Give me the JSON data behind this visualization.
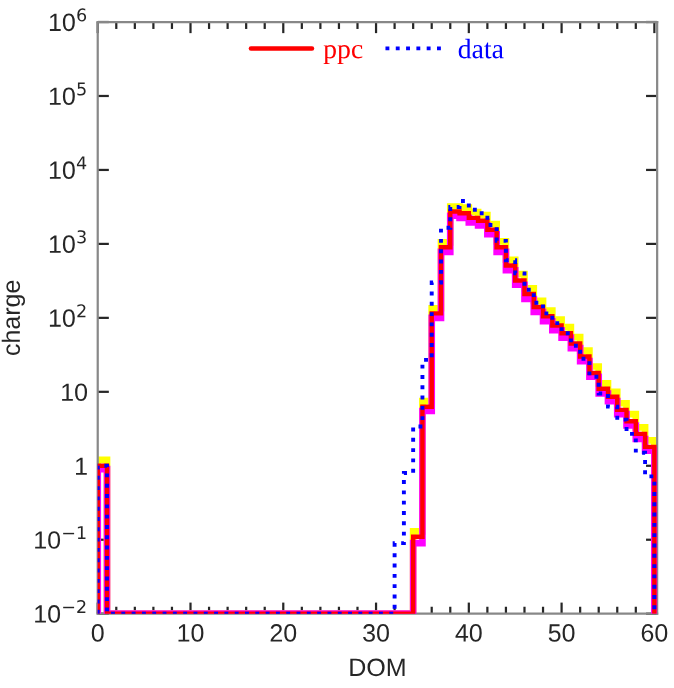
{
  "chart_data": {
    "type": "histogram",
    "xlabel": "DOM",
    "ylabel": "charge",
    "log": "y",
    "bins": [
      0,
      1,
      2,
      3,
      4,
      5,
      6,
      7,
      8,
      9,
      10,
      11,
      12,
      13,
      14,
      15,
      16,
      17,
      18,
      19,
      20,
      21,
      22,
      23,
      24,
      25,
      26,
      27,
      28,
      29,
      30,
      31,
      32,
      33,
      34,
      35,
      36,
      37,
      38,
      39,
      40,
      41,
      42,
      43,
      44,
      45,
      46,
      47,
      48,
      49,
      50,
      51,
      52,
      53,
      54,
      55,
      56,
      57,
      58,
      59,
      60
    ],
    "series": [
      {
        "color": "#ffff00",
        "line_style": "solid",
        "values": [
          1.2,
          null,
          null,
          null,
          null,
          null,
          null,
          null,
          null,
          null,
          null,
          null,
          null,
          null,
          null,
          null,
          null,
          null,
          null,
          null,
          null,
          null,
          null,
          null,
          null,
          null,
          null,
          null,
          null,
          null,
          null,
          null,
          null,
          null,
          0.13,
          7.5,
          135,
          1050,
          3200,
          3100,
          2700,
          2450,
          1850,
          1080,
          610,
          390,
          250,
          170,
          125,
          95,
          75,
          55,
          36,
          22,
          13,
          10,
          7,
          5,
          3.3,
          2.2
        ]
      },
      {
        "color": "#ff00ff",
        "line_style": "solid",
        "values": [
          0.9,
          null,
          null,
          null,
          null,
          null,
          null,
          null,
          null,
          null,
          null,
          null,
          null,
          null,
          null,
          null,
          null,
          null,
          null,
          null,
          null,
          null,
          null,
          null,
          null,
          null,
          null,
          null,
          null,
          null,
          null,
          null,
          null,
          null,
          0.09,
          5.5,
          100,
          780,
          2400,
          2250,
          1950,
          1780,
          1350,
          780,
          440,
          280,
          180,
          120,
          90,
          68,
          54,
          39,
          26,
          16,
          9.5,
          7.5,
          5,
          3.5,
          2.3,
          1.6
        ]
      },
      {
        "name": "ppc",
        "color": "#ff0000",
        "line_style": "solid",
        "values": [
          1,
          null,
          null,
          null,
          null,
          null,
          null,
          null,
          null,
          null,
          null,
          null,
          null,
          null,
          null,
          null,
          null,
          null,
          null,
          null,
          null,
          null,
          null,
          null,
          null,
          null,
          null,
          null,
          null,
          null,
          null,
          null,
          null,
          null,
          0.11,
          6.3,
          115,
          900,
          2750,
          2600,
          2250,
          2050,
          1550,
          900,
          510,
          320,
          210,
          140,
          105,
          79,
          62,
          45,
          30,
          18,
          11,
          8.6,
          5.7,
          4,
          2.7,
          1.8
        ]
      },
      {
        "name": "data",
        "color": "#0000ff",
        "line_style": "dotted",
        "values": [
          1,
          null,
          null,
          null,
          null,
          null,
          null,
          null,
          null,
          null,
          null,
          null,
          null,
          null,
          null,
          null,
          null,
          null,
          null,
          null,
          null,
          null,
          null,
          null,
          null,
          null,
          null,
          null,
          null,
          null,
          null,
          null,
          0.09,
          0.8,
          3.4,
          27,
          300,
          1650,
          3150,
          3800,
          2900,
          2600,
          1800,
          1100,
          600,
          400,
          240,
          160,
          115,
          85,
          62,
          42,
          28,
          16,
          9.5,
          6.3,
          4.2,
          2.7,
          1.5,
          0.72
        ]
      }
    ],
    "xlim": [
      0,
      60.3
    ],
    "xticks": [
      0,
      {
        "value": 2,
        "label": null
      },
      {
        "value": 4,
        "label": null
      },
      {
        "value": 6,
        "label": null
      },
      {
        "value": 8,
        "label": null
      },
      10,
      {
        "value": 12,
        "label": null
      },
      {
        "value": 14,
        "label": null
      },
      {
        "value": 16,
        "label": null
      },
      {
        "value": 18,
        "label": null
      },
      20,
      {
        "value": 22,
        "label": null
      },
      {
        "value": 24,
        "label": null
      },
      {
        "value": 26,
        "label": null
      },
      {
        "value": 28,
        "label": null
      },
      30,
      {
        "value": 32,
        "label": null
      },
      {
        "value": 34,
        "label": null
      },
      {
        "value": 36,
        "label": null
      },
      {
        "value": 38,
        "label": null
      },
      40,
      {
        "value": 42,
        "label": null
      },
      {
        "value": 44,
        "label": null
      },
      {
        "value": 46,
        "label": null
      },
      {
        "value": 48,
        "label": null
      },
      50,
      {
        "value": 52,
        "label": null
      },
      {
        "value": 54,
        "label": null
      },
      {
        "value": 56,
        "label": null
      },
      {
        "value": 58,
        "label": null
      },
      60
    ],
    "ylim": [
      0.01,
      1000000
    ],
    "yticks": [
      {
        "value": 0.01,
        "label": "10$^{−2}$"
      },
      {
        "value": 0.1,
        "label": "10$^{−1}$"
      },
      1,
      10,
      {
        "value": 100,
        "label": "10$^{2}$"
      },
      {
        "value": 1000,
        "label": "10$^{3}$"
      },
      {
        "value": 10000,
        "label": "10$^{4}$"
      },
      {
        "value": 100000,
        "label": "10$^{5}$"
      },
      {
        "value": 1000000,
        "label": "10$^{6}$"
      }
    ],
    "grid": false,
    "legend": "top"
  }
}
